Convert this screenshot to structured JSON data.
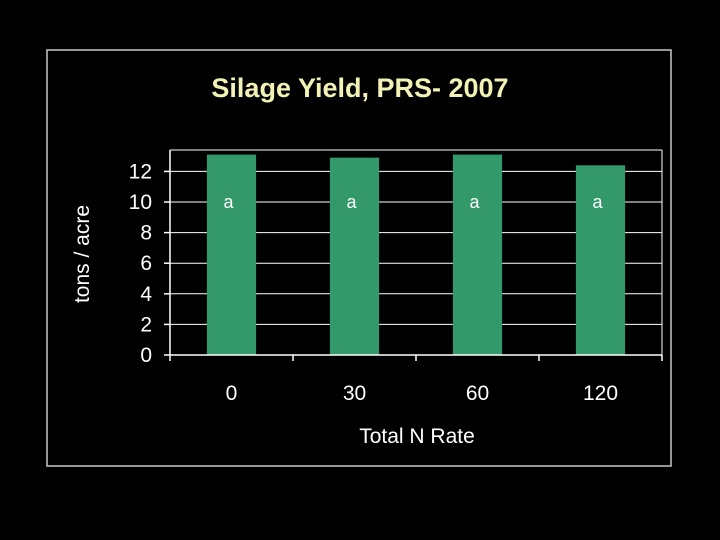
{
  "chart_data": {
    "type": "bar",
    "title": "Silage Yield, PRS- 2007",
    "xlabel": "Total N Rate",
    "ylabel": "tons  / acre",
    "categories": [
      "0",
      "30",
      "60",
      "120"
    ],
    "values": [
      13.1,
      12.9,
      13.1,
      12.4
    ],
    "bar_labels": [
      "a",
      "a",
      "a",
      "a"
    ],
    "yticks": [
      "0",
      "2",
      "4",
      "6",
      "8",
      "10",
      "12"
    ],
    "ylim": [
      0,
      13.4
    ],
    "grid": true,
    "legend": "none",
    "colors": {
      "bar": "#33996b",
      "title": "#f2f2b6",
      "frame": "#c8c8c8",
      "grid": "#ffffff",
      "text": "#ffffff",
      "background": "#000000"
    }
  }
}
